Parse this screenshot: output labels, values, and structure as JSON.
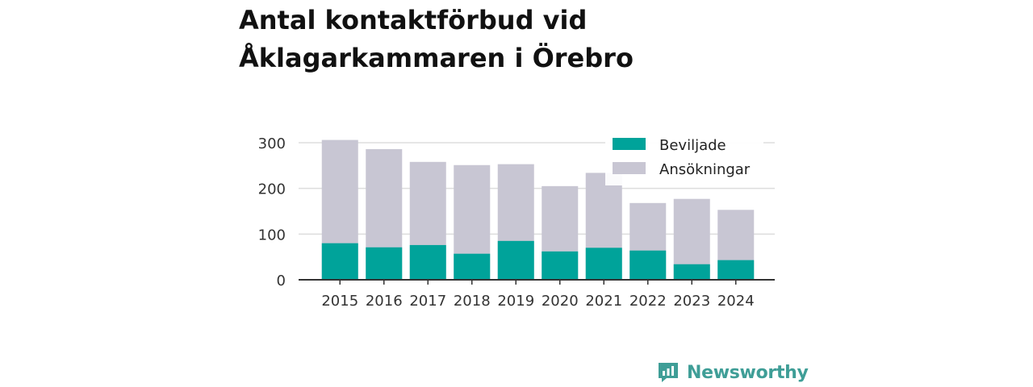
{
  "chart_data": {
    "type": "bar",
    "stacked": false,
    "overlapping": true,
    "title": "Antal kontaktförbud vid Åklagarkammaren i Örebro",
    "categories": [
      "2015",
      "2016",
      "2017",
      "2018",
      "2019",
      "2020",
      "2021",
      "2022",
      "2023",
      "2024"
    ],
    "series": [
      {
        "name": "Beviljade",
        "color": "#00a39a",
        "values": [
          80,
          71,
          76,
          57,
          85,
          62,
          70,
          64,
          34,
          43
        ]
      },
      {
        "name": "Ansökningar",
        "color": "#c8c6d3",
        "values": [
          306,
          286,
          258,
          251,
          253,
          205,
          234,
          168,
          177,
          153
        ]
      }
    ],
    "yticks": [
      "0",
      "100",
      "200",
      "300"
    ],
    "ylim": [
      0,
      310
    ],
    "grid": true,
    "legend_position": "top-right"
  },
  "branding": {
    "name": "Newsworthy",
    "icon": "newsworthy-logo-icon",
    "color": "#3f9e97"
  }
}
